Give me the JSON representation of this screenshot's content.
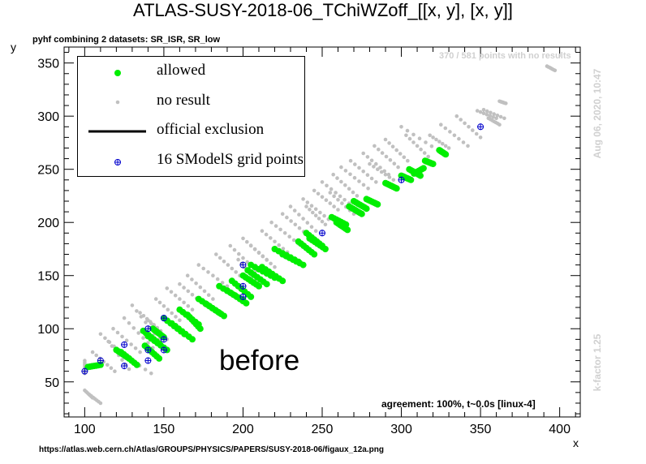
{
  "title": "ATLAS-SUSY-2018-06_TChiWZoff_[[x, y], [x, y]]",
  "subtitle": "pyhf combining 2 datasets: SR_ISR, SR_low",
  "footer_url": "https://atlas.web.cern.ch/Atlas/GROUPS/PHYSICS/PAPERS/SUSY-2018-06/figaux_12a.png",
  "agreement": "agreement: 100%, t~0.0s [linux-4]",
  "noresults_note": "370 / 581 points with no results",
  "timestamp": "Aug 06, 2020, 10:47",
  "kfactor": "k-factor 1.25",
  "overlay_text": "before",
  "colors": {
    "allowed": "#00ee00",
    "no_result": "#c0c0c0",
    "grid_point": "#0000cc",
    "watermark": "#d0d0d0"
  },
  "chart_data": {
    "type": "scatter",
    "xlabel": "x",
    "ylabel": "y",
    "xlim": [
      87,
      413
    ],
    "ylim": [
      17,
      365
    ],
    "xticks": [
      100,
      150,
      200,
      250,
      300,
      350,
      400
    ],
    "yticks": [
      50,
      100,
      150,
      200,
      250,
      300,
      350
    ],
    "legend": {
      "placement": "top-left",
      "entries": [
        {
          "label": "allowed",
          "symbol": "green-dot"
        },
        {
          "label": "no result",
          "symbol": "grey-dot"
        },
        {
          "label": "official exclusion",
          "symbol": "black-line"
        },
        {
          "label": "16 SModelS grid points",
          "symbol": "blue-cross"
        }
      ]
    },
    "series": [
      {
        "name": "no result",
        "segments": [
          [
            100,
            70,
            100,
            58
          ],
          [
            100,
            42,
            105,
            35
          ],
          [
            103,
            38,
            110,
            30
          ],
          [
            110,
            95,
            127,
            72
          ],
          [
            115,
            88,
            128,
            62
          ],
          [
            105,
            78,
            119,
            60
          ],
          [
            118,
            100,
            135,
            78
          ],
          [
            125,
            110,
            143,
            82
          ],
          [
            130,
            122,
            147,
            90
          ],
          [
            120,
            80,
            142,
            58
          ],
          [
            135,
            115,
            148,
            98
          ],
          [
            140,
            108,
            152,
            90
          ],
          [
            145,
            128,
            160,
            108
          ],
          [
            152,
            138,
            168,
            118
          ],
          [
            160,
            142,
            176,
            122
          ],
          [
            165,
            150,
            181,
            128
          ],
          [
            172,
            160,
            190,
            140
          ],
          [
            183,
            170,
            198,
            150
          ],
          [
            192,
            178,
            208,
            155
          ],
          [
            200,
            185,
            215,
            165
          ],
          [
            197,
            165,
            210,
            142
          ],
          [
            212,
            192,
            228,
            172
          ],
          [
            218,
            200,
            235,
            180
          ],
          [
            225,
            208,
            241,
            188
          ],
          [
            230,
            215,
            246,
            192
          ],
          [
            238,
            222,
            254,
            203
          ],
          [
            245,
            230,
            260,
            212
          ],
          [
            250,
            238,
            267,
            218
          ],
          [
            257,
            245,
            272,
            225
          ],
          [
            262,
            252,
            279,
            232
          ],
          [
            268,
            258,
            284,
            238
          ],
          [
            276,
            265,
            292,
            245
          ],
          [
            283,
            272,
            298,
            252
          ],
          [
            290,
            278,
            304,
            258
          ],
          [
            300,
            290,
            323,
            268
          ],
          [
            303,
            282,
            317,
            262
          ],
          [
            318,
            282,
            330,
            270
          ],
          [
            325,
            292,
            342,
            272
          ],
          [
            335,
            300,
            350,
            280
          ],
          [
            352,
            306,
            365,
            298
          ],
          [
            355,
            298,
            362,
            292
          ],
          [
            348,
            305,
            360,
            298
          ],
          [
            362,
            314,
            366,
            312
          ],
          [
            392,
            347,
            397,
            343
          ],
          [
            205,
            178,
            220,
            158
          ],
          [
            255,
            228,
            270,
            208
          ],
          [
            240,
            215,
            252,
            198
          ],
          [
            280,
            255,
            295,
            240
          ]
        ]
      },
      {
        "name": "allowed",
        "segments": [
          [
            102,
            64,
            110,
            66
          ],
          [
            120,
            80,
            128,
            72
          ],
          [
            123,
            78,
            133,
            66
          ],
          [
            137,
            98,
            147,
            86
          ],
          [
            140,
            93,
            152,
            80
          ],
          [
            138,
            84,
            147,
            72
          ],
          [
            143,
            100,
            150,
            92
          ],
          [
            150,
            110,
            163,
            95
          ],
          [
            155,
            105,
            168,
            90
          ],
          [
            160,
            118,
            172,
            104
          ],
          [
            165,
            113,
            173,
            100
          ],
          [
            172,
            128,
            185,
            115
          ],
          [
            177,
            123,
            188,
            112
          ],
          [
            185,
            140,
            200,
            127
          ],
          [
            190,
            136,
            202,
            124
          ],
          [
            193,
            145,
            205,
            130
          ],
          [
            200,
            150,
            210,
            140
          ],
          [
            205,
            160,
            220,
            148
          ],
          [
            203,
            155,
            215,
            142
          ],
          [
            212,
            158,
            225,
            145
          ],
          [
            220,
            175,
            235,
            163
          ],
          [
            225,
            170,
            238,
            160
          ],
          [
            235,
            182,
            245,
            170
          ],
          [
            240,
            190,
            250,
            178
          ],
          [
            242,
            185,
            252,
            175
          ],
          [
            256,
            205,
            265,
            198
          ],
          [
            259,
            200,
            266,
            193
          ],
          [
            267,
            215,
            275,
            208
          ],
          [
            270,
            220,
            278,
            213
          ],
          [
            278,
            222,
            285,
            217
          ],
          [
            290,
            237,
            297,
            232
          ],
          [
            305,
            250,
            312,
            244
          ],
          [
            300,
            244,
            306,
            240
          ],
          [
            308,
            246,
            314,
            251
          ],
          [
            315,
            258,
            320,
            255
          ],
          [
            324,
            268,
            328,
            264
          ]
        ]
      },
      {
        "name": "16 SModelS grid points",
        "points": [
          [
            100,
            60
          ],
          [
            110,
            70
          ],
          [
            125,
            85
          ],
          [
            125,
            65
          ],
          [
            140,
            100
          ],
          [
            140,
            80
          ],
          [
            140,
            70
          ],
          [
            150,
            110
          ],
          [
            150,
            90
          ],
          [
            150,
            80
          ],
          [
            200,
            160
          ],
          [
            200,
            140
          ],
          [
            200,
            130
          ],
          [
            250,
            190
          ],
          [
            300,
            240
          ],
          [
            350,
            290
          ]
        ]
      }
    ]
  }
}
